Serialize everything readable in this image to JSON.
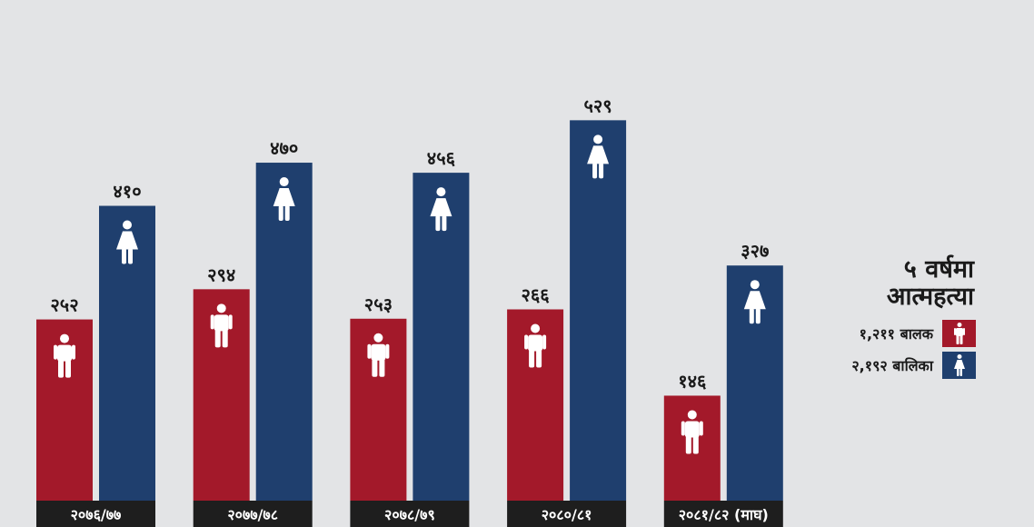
{
  "chart_data": {
    "type": "bar",
    "categories": [
      "२०७६/७७",
      "२०७७/७८",
      "२०७८/७९",
      "२०८०/८१",
      "२०८१/८२ (माघ)"
    ],
    "series": [
      {
        "name": "बालक",
        "values": [
          252,
          294,
          253,
          266,
          146
        ],
        "labels": [
          "२५२",
          "२९४",
          "२५३",
          "२६६",
          "१४६"
        ],
        "color": "#a3192a",
        "icon": "male-icon"
      },
      {
        "name": "बालिका",
        "values": [
          410,
          470,
          456,
          529,
          327
        ],
        "labels": [
          "४१०",
          "४७०",
          "४५६",
          "५२९",
          "३२७"
        ],
        "color": "#1f3f6e",
        "icon": "female-icon"
      }
    ],
    "ylim": [
      0,
      600
    ],
    "grid": false,
    "legend_placement": "right"
  },
  "legend": {
    "title_line1": "५ वर्षमा",
    "title_line2": "आत्महत्या",
    "items": [
      {
        "label": "१,२११ बालक",
        "color": "#a3192a",
        "icon": "male-icon"
      },
      {
        "label": "२,१९२ बालिका",
        "color": "#1f3f6e",
        "icon": "female-icon"
      }
    ]
  },
  "colors": {
    "background": "#e3e4e6",
    "category_label_bg": "#1e1e1e",
    "category_label_text": "#ffffff"
  }
}
